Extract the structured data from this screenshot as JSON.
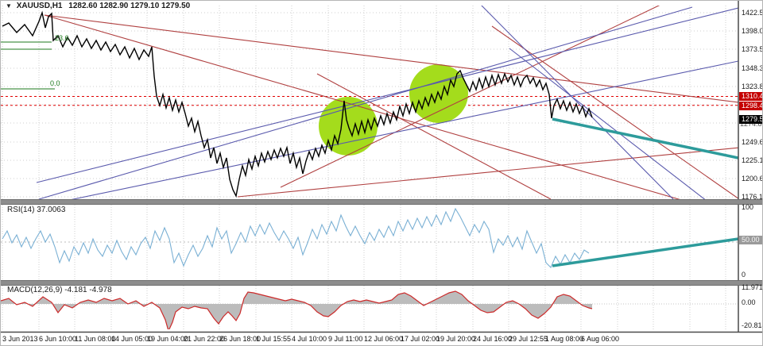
{
  "window": {
    "dropdown_icon": "▼",
    "symbol_title": "XAUUSD,H1",
    "ohlc_text": "1282.60 1282.90 1279.10 1279.50"
  },
  "main_chart": {
    "price_axis_labels": [
      "1422.50",
      "1398.00",
      "1373.50",
      "1348.30",
      "1323.80",
      "1249.60",
      "1225.10",
      "1200.60",
      "1176.10"
    ],
    "price_markers": {
      "resistance_upper": "1310.41",
      "resistance_lower": "1298.46",
      "current_bid": "1279.50",
      "grid_partial": "1274.80"
    },
    "fib_labels": {
      "upper": "23.6",
      "lower": "0.0"
    }
  },
  "rsi_panel": {
    "label": "RSI(14) 37.0063",
    "axis": [
      "100",
      "50.00",
      "0"
    ]
  },
  "macd_panel": {
    "label": "MACD(12,26,9) -4.181 -4.978",
    "axis": [
      "11.971",
      "0.00",
      "-20.814"
    ]
  },
  "time_axis": {
    "labels": [
      "3 Jun 2013",
      "6 Jun 10:00",
      "11 Jun 08:00",
      "14 Jun 05:00",
      "19 Jun 04:00",
      "21 Jun 22:00",
      "26 Jun 18:00",
      "1 Jul 15:55",
      "4 Jul 10:00",
      "9 Jul 11:00",
      "12 Jul 06:00",
      "17 Jul 02:00",
      "19 Jul 20:00",
      "24 Jul 16:00",
      "29 Jul 12:55",
      "1 Aug 08:00",
      "6 Aug 06:00"
    ]
  },
  "chart_data": {
    "type": "candlestick",
    "symbol": "XAUUSD",
    "timeframe": "H1",
    "last_bar": {
      "open": 1282.6,
      "high": 1282.9,
      "low": 1279.1,
      "close": 1279.5
    },
    "y_axis": {
      "min": 1176.1,
      "max": 1422.5,
      "ticks": [
        1422.5,
        1398.0,
        1373.5,
        1348.3,
        1323.8,
        1274.8,
        1249.6,
        1225.1,
        1200.6,
        1176.1
      ]
    },
    "x_labels": [
      "3 Jun 2013",
      "6 Jun 10:00",
      "11 Jun 08:00",
      "14 Jun 05:00",
      "19 Jun 04:00",
      "21 Jun 22:00",
      "26 Jun 18:00",
      "1 Jul 15:55",
      "4 Jul 10:00",
      "9 Jul 11:00",
      "12 Jul 06:00",
      "17 Jul 02:00",
      "19 Jul 20:00",
      "24 Jul 16:00",
      "29 Jul 12:55",
      "1 Aug 08:00",
      "6 Aug 06:00"
    ],
    "approx_close_by_label": [
      1406,
      1412,
      1348,
      1355,
      1332,
      1279,
      1215,
      1226,
      1231,
      1252,
      1268,
      1298,
      1311,
      1327,
      1332,
      1324,
      1287
    ],
    "horizontal_levels": [
      {
        "price": 1310.41,
        "color": "#d40000",
        "style": "dashed"
      },
      {
        "price": 1298.46,
        "color": "#d40000",
        "style": "dashed"
      }
    ],
    "current_price": 1279.5,
    "fibonacci_levels": [
      {
        "label": "23.6"
      },
      {
        "label": "0.0"
      }
    ],
    "highlight_ellipses": [
      {
        "center_time": "12 Jul",
        "center_price": 1256,
        "color": "#a4dc1c"
      },
      {
        "center_time": "22 Jul",
        "center_price": 1300,
        "color": "#a4dc1c"
      }
    ],
    "trendlines": {
      "red_descending_fan_and_channels": 6,
      "blue_channels": 5,
      "teal_forecast_main": {
        "from_price": 1268,
        "to_price": 1222,
        "thick": true
      },
      "teal_forecast_rsi": {
        "from_value": 18,
        "to_value": 52,
        "thick": true
      }
    },
    "indicators": {
      "rsi": {
        "period": 14,
        "value": 37.0063,
        "level": 50
      },
      "macd": {
        "fast": 12,
        "slow": 26,
        "signal_period": 9,
        "value": -4.181,
        "signal_value": -4.978,
        "range": [
          -20.814,
          11.971
        ]
      }
    },
    "render": {
      "price_path": "2,32 10,28 20,40 30,30 40,44 48,26 52,15 56,34 60,20 64,16 66,50 72,44 78,58 84,46 90,56 96,44 102,58 108,48 114,60 120,50 126,62 132,52 138,64 144,55 150,68 156,58 162,72 168,60 174,74 180,62 186,70 190,58 193,95 196,120 200,132 204,118 208,135 212,122 216,138 220,125 224,140 228,128 232,142 236,158 240,148 244,165 248,152 252,170 256,185 260,175 264,198 268,185 272,205 276,192 280,210 284,198 288,225 292,238 296,246 300,225 304,208 308,220 312,200 316,212 320,196 324,208 328,192 332,203 336,190 340,200 344,188 348,198 352,186 356,196 360,185 364,205 368,192 372,210 376,198 380,218 384,202 388,190 392,200 396,186 400,196 404,182 408,192 412,176 416,188 420,170 424,180 428,162 432,126 435,150 438,160 442,170 446,155 450,168 454,152 458,166 462,150 466,162 470,148 474,158 478,145 482,156 486,142 490,154 494,140 498,150 502,133 506,145 510,130 514,142 518,128 522,140 526,126 530,136 534,122 538,132 542,118 546,128 550,115 554,124 558,108 562,118 566,100 570,108 574,92 578,88 582,98 586,106 590,114 594,102 598,112 602,98 606,110 610,96 614,108 618,94 622,106 626,93 630,104 634,92 638,102 642,94 646,106 650,96 654,108 658,98 662,94 666,104 670,97 674,108 678,100 682,112 686,104 690,118 693,148 696,132 700,124 704,136 708,126 712,138 716,128 720,140 724,130 728,142 732,133 736,146 740,136 744,147",
      "rsi_path": "2,300 8,290 14,305 20,295 26,310 32,298 38,312 44,300 50,290 56,304 62,294 68,310 74,330 80,315 86,328 92,310 98,320 104,305 110,318 116,300 122,314 128,322 134,308 140,318 146,302 152,316 158,326 164,310 170,320 176,306 182,298 188,312 194,290 200,302 206,286 212,300 218,330 224,318 230,334 236,320 242,308 248,322 254,312 260,296 266,310 272,286 278,300 284,290 290,318 296,306 302,292 308,304 314,284 320,296 326,282 332,294 338,280 344,292 350,302 356,290 362,300 368,312 374,298 380,320 386,305 392,288 398,300 404,282 410,294 416,278 422,290 428,270 434,284 440,296 446,284 452,296 458,306 464,292 470,302 476,288 482,298 488,284 494,296 500,278 506,290 512,276 518,288 524,274 530,286 536,272 542,284 548,270 554,282 560,266 566,278 572,262 578,272 584,284 590,296 596,282 602,292 608,278 614,288 620,317 626,300 632,308 638,296 644,310 650,298 656,313 662,290 668,304 674,318 680,306 686,330 692,336 698,322 704,332 710,320 716,330 722,318 728,326 734,314 740,318",
      "macd_line": "0,378 10,375 20,383 30,380 40,385 53,373 64,380 72,393 80,383 90,387 100,380 110,377 120,380 130,375 140,378 150,375 160,382 170,378 180,385 190,380 200,387 207,402 211,416 216,405 220,392 228,386 236,388 244,385 252,387 260,388 268,400 274,407 280,398 286,392 291,397 296,403 301,394 306,375 311,367 318,368 326,370 334,372 342,374 350,376 358,378 366,376 374,378 382,380 390,384 398,392 406,397 412,398 420,392 428,384 436,379 444,377 452,379 460,377 468,379 476,381 484,379 492,377 500,370 508,368 516,372 524,378 532,384 540,380 548,376 556,372 564,368 572,366 580,370 588,378 596,384 604,390 612,393 620,392 628,386 636,380 644,378 652,382 660,388 668,396 676,400 684,394 692,386 700,373 708,370 716,372 724,378 732,384 740,387 744,388",
      "macd_area": "0,382 0,378 10,375 20,383 30,380 40,385 53,373 64,380 72,393 80,383 90,387 100,380 110,377 120,380 130,375 140,378 150,375 160,382 170,378 180,385 190,380 200,387 207,402 211,416 216,405 220,392 228,386 236,388 244,385 252,387 260,388 268,400 274,407 280,398 286,392 291,397 296,403 301,394 306,375 311,367 318,368 326,370 334,372 342,374 350,376 358,378 366,376 374,378 382,380 390,384 398,392 406,397 412,398 420,392 428,384 436,379 444,377 452,379 460,377 468,379 476,381 484,379 492,377 500,370 508,368 516,372 524,378 532,384 540,380 548,376 556,372 564,368 572,366 580,370 588,378 596,384 604,390 612,393 620,392 628,386 636,380 644,378 652,382 660,388 668,396 676,400 684,394 692,386 700,373 708,370 716,372 724,378 732,384 740,387 744,388 744,382"
    }
  }
}
